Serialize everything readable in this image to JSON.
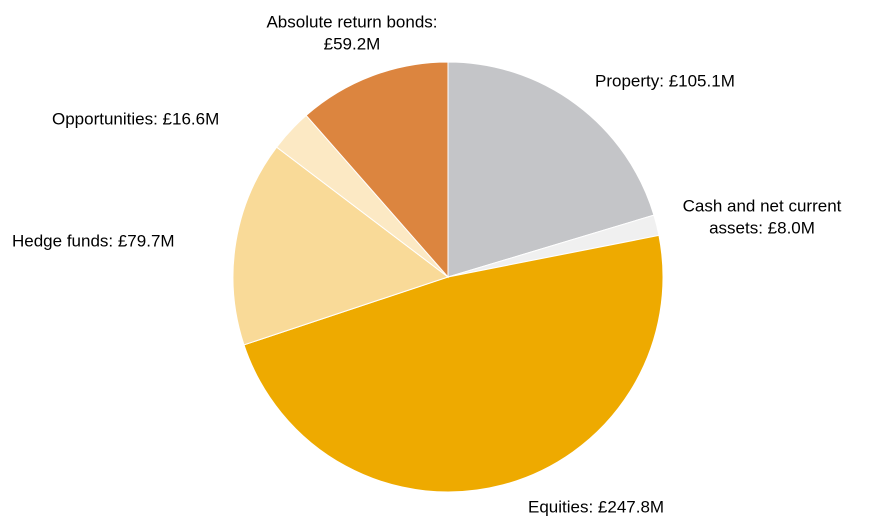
{
  "chart_data": {
    "type": "pie",
    "values": [
      105.1,
      8.0,
      247.8,
      79.7,
      16.6,
      59.2
    ],
    "value_labels": [
      [
        "Property: £105.1M"
      ],
      [
        "Cash and net current",
        "assets: £8.0M"
      ],
      [
        "Equities: £247.8M"
      ],
      [
        "Hedge funds: £79.7M"
      ],
      [
        "Opportunities: £16.6M"
      ],
      [
        "Absolute return bonds:",
        "£59.2M"
      ]
    ],
    "colors": [
      "#c4c5c8",
      "#f0f0f0",
      "#eeaa00",
      "#f9da98",
      "#fce9c4",
      "#dc853f"
    ]
  }
}
